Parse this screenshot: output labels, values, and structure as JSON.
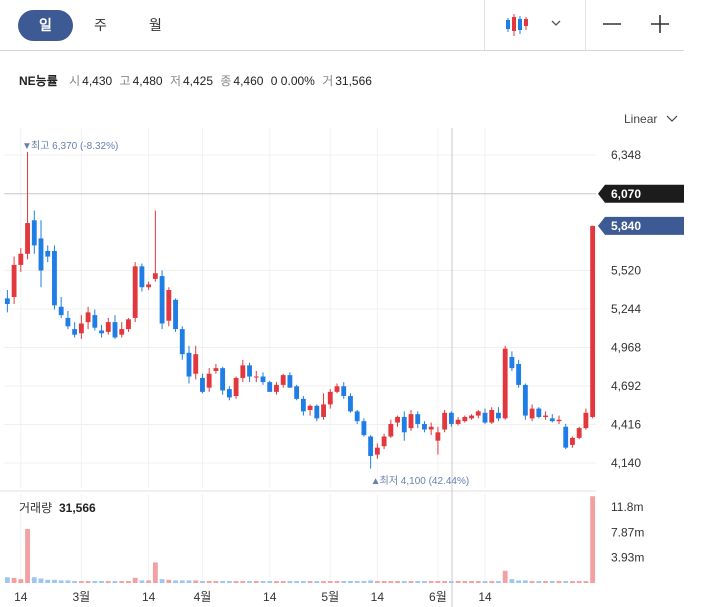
{
  "toolbar": {
    "tabs": [
      {
        "label": "일",
        "active": true
      },
      {
        "label": "주",
        "active": false
      },
      {
        "label": "월",
        "active": false
      }
    ],
    "chart_type_icon": "candlestick-icon",
    "chart_type_menu_icon": "chevron-down-icon",
    "zoom_out_icon": "minus-icon",
    "zoom_in_icon": "plus-icon"
  },
  "quote": {
    "symbol": "NE능률",
    "open_label": "시",
    "open": "4,430",
    "high_label": "고",
    "high": "4,480",
    "low_label": "저",
    "low": "4,425",
    "close_label": "종",
    "close": "4,460",
    "change": "0 0.00%",
    "volume_label": "거",
    "volume": "31,566"
  },
  "scale": {
    "label": "Linear",
    "icon": "chevron-down-icon"
  },
  "colors": {
    "up": "#e2373c",
    "down": "#1f7de6",
    "accent": "#3e5a94",
    "crosshair_tag": "#1c1c1c"
  },
  "chart_data": {
    "type": "candlestick",
    "y_ticks": [
      "6,348",
      "5,520",
      "5,244",
      "4,968",
      "4,692",
      "4,416",
      "4,140"
    ],
    "y_tick_values": [
      6348,
      5520,
      5244,
      4968,
      4692,
      4416,
      4140
    ],
    "x_ticks": [
      "14",
      "3월",
      "14",
      "4월",
      "14",
      "5월",
      "14",
      "6월",
      "14"
    ],
    "x_tick_index": [
      2,
      11,
      21,
      29,
      39,
      48,
      55,
      64,
      71
    ],
    "crosshair_price": "6,070",
    "current_price": "5,840",
    "high_marker": "최고 6,370 (-8.32%)",
    "low_marker": "최저 4,100 (42.44%)",
    "volume_title": "거래량",
    "volume_value": "31,566",
    "volume_ticks": [
      "11.8m",
      "7.87m",
      "3.93m"
    ],
    "volume_tick_values": [
      11.8,
      7.87,
      3.93
    ],
    "candles": [
      [
        5320,
        5380,
        5220,
        5280
      ],
      [
        5330,
        5620,
        5280,
        5560
      ],
      [
        5560,
        5680,
        5510,
        5640
      ],
      [
        5640,
        6370,
        5600,
        5860
      ],
      [
        5880,
        5950,
        5640,
        5700
      ],
      [
        5750,
        5880,
        5400,
        5520
      ],
      [
        5660,
        5700,
        5580,
        5620
      ],
      [
        5660,
        5700,
        5240,
        5270
      ],
      [
        5260,
        5330,
        5180,
        5200
      ],
      [
        5180,
        5230,
        5100,
        5120
      ],
      [
        5100,
        5150,
        5040,
        5060
      ],
      [
        5070,
        5200,
        5030,
        5140
      ],
      [
        5150,
        5260,
        5100,
        5220
      ],
      [
        5200,
        5240,
        5090,
        5110
      ],
      [
        5090,
        5130,
        5040,
        5070
      ],
      [
        5080,
        5180,
        5060,
        5150
      ],
      [
        5150,
        5200,
        5030,
        5040
      ],
      [
        5060,
        5150,
        5040,
        5100
      ],
      [
        5100,
        5180,
        5080,
        5170
      ],
      [
        5180,
        5580,
        5150,
        5550
      ],
      [
        5550,
        5570,
        5370,
        5400
      ],
      [
        5400,
        5440,
        5380,
        5420
      ],
      [
        5460,
        5950,
        5440,
        5500
      ],
      [
        5480,
        5520,
        5100,
        5140
      ],
      [
        5160,
        5400,
        5120,
        5380
      ],
      [
        5310,
        5320,
        5080,
        5100
      ],
      [
        5100,
        5120,
        4880,
        4920
      ],
      [
        4930,
        4980,
        4710,
        4760
      ],
      [
        4780,
        4980,
        4740,
        4920
      ],
      [
        4750,
        4780,
        4640,
        4650
      ],
      [
        4680,
        4820,
        4650,
        4780
      ],
      [
        4800,
        4850,
        4780,
        4820
      ],
      [
        4820,
        4830,
        4630,
        4660
      ],
      [
        4670,
        4690,
        4590,
        4610
      ],
      [
        4620,
        4760,
        4600,
        4750
      ],
      [
        4750,
        4880,
        4720,
        4840
      ],
      [
        4840,
        4860,
        4720,
        4760
      ],
      [
        4760,
        4800,
        4720,
        4760
      ],
      [
        4760,
        4790,
        4700,
        4720
      ],
      [
        4720,
        4730,
        4650,
        4650
      ],
      [
        4650,
        4720,
        4630,
        4700
      ],
      [
        4700,
        4780,
        4680,
        4770
      ],
      [
        4770,
        4790,
        4680,
        4680
      ],
      [
        4690,
        4700,
        4590,
        4600
      ],
      [
        4600,
        4620,
        4480,
        4510
      ],
      [
        4520,
        4560,
        4480,
        4550
      ],
      [
        4550,
        4560,
        4440,
        4460
      ],
      [
        4470,
        4640,
        4450,
        4560
      ],
      [
        4560,
        4670,
        4530,
        4650
      ],
      [
        4650,
        4710,
        4640,
        4690
      ],
      [
        4690,
        4720,
        4600,
        4620
      ],
      [
        4620,
        4640,
        4500,
        4510
      ],
      [
        4510,
        4520,
        4420,
        4440
      ],
      [
        4440,
        4460,
        4330,
        4340
      ],
      [
        4330,
        4340,
        4100,
        4190
      ],
      [
        4200,
        4280,
        4170,
        4250
      ],
      [
        4260,
        4350,
        4240,
        4330
      ],
      [
        4330,
        4450,
        4320,
        4420
      ],
      [
        4430,
        4480,
        4400,
        4470
      ],
      [
        4470,
        4510,
        4300,
        4360
      ],
      [
        4390,
        4520,
        4370,
        4490
      ],
      [
        4490,
        4510,
        4390,
        4420
      ],
      [
        4420,
        4440,
        4360,
        4380
      ],
      [
        4380,
        4430,
        4340,
        4400
      ],
      [
        4300,
        4400,
        4200,
        4360
      ],
      [
        4380,
        4520,
        4360,
        4500
      ],
      [
        4500,
        4510,
        4400,
        4420
      ],
      [
        4420,
        4470,
        4410,
        4450
      ],
      [
        4440,
        4480,
        4430,
        4470
      ],
      [
        4460,
        4490,
        4450,
        4480
      ],
      [
        4480,
        4520,
        4460,
        4510
      ],
      [
        4500,
        4530,
        4420,
        4430
      ],
      [
        4430,
        4540,
        4420,
        4520
      ],
      [
        4500,
        4540,
        4440,
        4460
      ],
      [
        4460,
        4980,
        4450,
        4960
      ],
      [
        4900,
        4940,
        4800,
        4820
      ],
      [
        4850,
        4880,
        4680,
        4700
      ],
      [
        4700,
        4710,
        4450,
        4480
      ],
      [
        4460,
        4560,
        4440,
        4530
      ],
      [
        4530,
        4540,
        4460,
        4470
      ],
      [
        4470,
        4510,
        4450,
        4480
      ],
      [
        4460,
        4490,
        4430,
        4440
      ],
      [
        4440,
        4480,
        4420,
        4450
      ],
      [
        4400,
        4420,
        4240,
        4250
      ],
      [
        4270,
        4330,
        4250,
        4320
      ],
      [
        4320,
        4400,
        4310,
        4390
      ],
      [
        4390,
        4530,
        4380,
        4500
      ],
      [
        4470,
        5840,
        4460,
        5840
      ]
    ],
    "volumes": [
      0.9,
      0.8,
      0.6,
      8.4,
      0.9,
      0.7,
      0.5,
      0.5,
      0.4,
      0.4,
      0.3,
      0.3,
      0.3,
      0.3,
      0.3,
      0.3,
      0.3,
      0.3,
      0.3,
      0.8,
      0.4,
      0.4,
      3.2,
      0.6,
      0.5,
      0.4,
      0.4,
      0.4,
      0.4,
      0.3,
      0.3,
      0.3,
      0.3,
      0.3,
      0.3,
      0.3,
      0.3,
      0.3,
      0.3,
      0.3,
      0.3,
      0.3,
      0.3,
      0.3,
      0.3,
      0.3,
      0.3,
      0.3,
      0.3,
      0.3,
      0.3,
      0.3,
      0.3,
      0.3,
      0.4,
      0.3,
      0.3,
      0.3,
      0.3,
      0.3,
      0.3,
      0.3,
      0.3,
      0.3,
      0.3,
      0.3,
      0.3,
      0.3,
      0.3,
      0.3,
      0.3,
      0.3,
      0.3,
      0.3,
      1.9,
      0.6,
      0.4,
      0.4,
      0.3,
      0.3,
      0.3,
      0.3,
      0.3,
      0.3,
      0.3,
      0.3,
      0.3,
      13.5
    ]
  }
}
